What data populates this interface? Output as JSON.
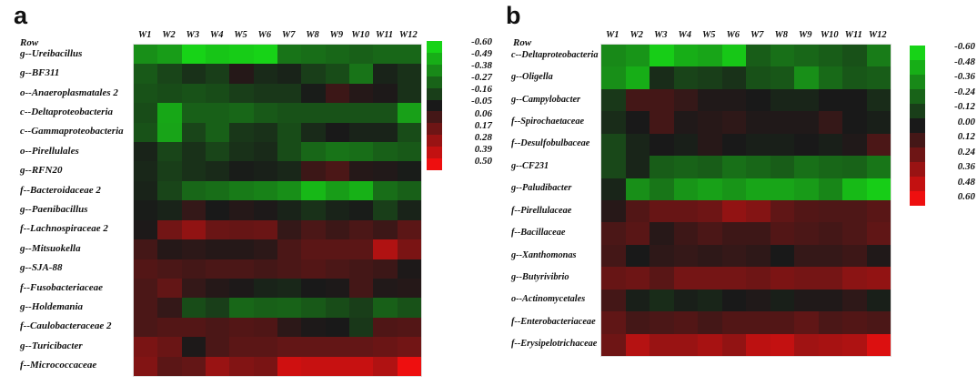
{
  "chart_data": [
    {
      "type": "heatmap",
      "panel_label": "a",
      "row_header_label": "Row",
      "x": [
        "W1",
        "W2",
        "W3",
        "W4",
        "W5",
        "W6",
        "W7",
        "W8",
        "W9",
        "W10",
        "W11",
        "W12"
      ],
      "y": [
        "g--Ureibacillus",
        "g--BF311",
        "o--Anaeroplasmatales 2",
        "c--Deltaproteobacteria",
        "c--Gammaproteobacteria",
        "o--Pirellulales",
        "g--RFN20",
        "f--Bacteroidaceae 2",
        "g--Paenibacillus",
        "f--Lachnospiraceae 2",
        "g--Mitsuokella",
        "g--SJA-88",
        "f--Fusobacteriaceae",
        "g--Holdemania",
        "f--Caulobacteraceae 2",
        "g--Turicibacter",
        "f--Micrococcaceae"
      ],
      "values": [
        [
          -0.4,
          -0.44,
          -0.6,
          -0.56,
          -0.58,
          -0.6,
          -0.32,
          -0.3,
          -0.28,
          -0.26,
          -0.28,
          -0.28
        ],
        [
          -0.24,
          -0.18,
          -0.12,
          -0.16,
          -0.02,
          -0.1,
          -0.08,
          -0.16,
          -0.2,
          -0.32,
          -0.08,
          -0.12
        ],
        [
          -0.22,
          -0.2,
          -0.22,
          -0.2,
          -0.16,
          -0.14,
          -0.14,
          -0.06,
          0.04,
          -0.02,
          -0.04,
          -0.12
        ],
        [
          -0.2,
          -0.47,
          -0.26,
          -0.26,
          -0.28,
          -0.24,
          -0.22,
          -0.22,
          -0.22,
          -0.22,
          -0.22,
          -0.45
        ],
        [
          -0.22,
          -0.46,
          -0.18,
          -0.26,
          -0.14,
          -0.12,
          -0.2,
          -0.1,
          -0.05,
          -0.08,
          -0.08,
          -0.2
        ],
        [
          -0.08,
          -0.18,
          -0.12,
          -0.18,
          -0.12,
          -0.1,
          -0.2,
          -0.28,
          -0.32,
          -0.3,
          -0.26,
          -0.24
        ],
        [
          -0.09,
          -0.16,
          -0.12,
          -0.1,
          -0.06,
          -0.07,
          -0.09,
          0.04,
          0.08,
          -0.02,
          -0.03,
          -0.06
        ],
        [
          -0.08,
          -0.18,
          -0.28,
          -0.3,
          -0.34,
          -0.36,
          -0.4,
          -0.52,
          -0.44,
          -0.5,
          -0.3,
          -0.26
        ],
        [
          -0.06,
          -0.08,
          0.02,
          -0.05,
          -0.02,
          -0.04,
          -0.08,
          -0.12,
          -0.08,
          -0.06,
          -0.16,
          -0.08
        ],
        [
          -0.04,
          0.18,
          0.26,
          0.16,
          0.15,
          0.16,
          0.02,
          0.08,
          0.04,
          0.08,
          0.04,
          0.12
        ],
        [
          0.06,
          -0.02,
          0.0,
          -0.02,
          -0.02,
          0.0,
          0.08,
          0.12,
          0.12,
          0.12,
          0.34,
          0.2
        ],
        [
          0.1,
          0.08,
          0.06,
          0.08,
          0.08,
          0.06,
          0.08,
          0.1,
          0.08,
          0.06,
          0.04,
          -0.04
        ],
        [
          0.08,
          0.14,
          0.02,
          -0.02,
          -0.04,
          -0.08,
          -0.09,
          -0.05,
          -0.04,
          0.06,
          -0.03,
          -0.02
        ],
        [
          0.08,
          0.02,
          -0.2,
          -0.16,
          -0.28,
          -0.26,
          -0.27,
          -0.24,
          -0.2,
          -0.16,
          -0.26,
          -0.22
        ],
        [
          0.08,
          0.1,
          0.1,
          0.08,
          0.1,
          0.09,
          0.0,
          -0.04,
          -0.05,
          -0.14,
          0.09,
          0.1
        ],
        [
          0.2,
          0.16,
          -0.04,
          0.08,
          0.12,
          0.12,
          0.14,
          0.14,
          0.14,
          0.14,
          0.16,
          0.18
        ],
        [
          0.22,
          0.12,
          0.14,
          0.28,
          0.22,
          0.2,
          0.42,
          0.4,
          0.4,
          0.4,
          0.34,
          0.5
        ]
      ],
      "legend_ticks": [
        "-0.60",
        "-0.49",
        "-0.38",
        "-0.27",
        "-0.16",
        "-0.05",
        "0.06",
        "0.17",
        "0.28",
        "0.39",
        "0.50"
      ],
      "color_scale": {
        "low_color": "#17D317",
        "mid_color": "#191919",
        "high_color": "#EE0F0F",
        "min": -0.6,
        "mid": -0.05,
        "max": 0.5,
        "legend_position": "right"
      }
    },
    {
      "type": "heatmap",
      "panel_label": "b",
      "row_header_label": "Row",
      "x": [
        "W1",
        "W2",
        "W3",
        "W4",
        "W5",
        "W6",
        "W7",
        "W8",
        "W9",
        "W10",
        "W11",
        "W12"
      ],
      "y": [
        "c--Deltaproteobacteria",
        "g--Oligella",
        "g--Campylobacter",
        "f--Spirochaetaceae",
        "f--Desulfobulbaceae",
        "g--CF231",
        "g--Paludibacter",
        "f--Pirellulaceae",
        "f--Bacillaceae",
        "g--Xanthomonas",
        "g--Butyrivibrio",
        "o--Actinomycetales",
        "f--Enterobacteriaceae",
        "f--Erysipelotrichaceae"
      ],
      "values": [
        [
          -0.36,
          -0.4,
          -0.58,
          -0.48,
          -0.45,
          -0.56,
          -0.22,
          -0.28,
          -0.25,
          -0.22,
          -0.18,
          -0.32
        ],
        [
          -0.38,
          -0.48,
          -0.06,
          -0.14,
          -0.12,
          -0.08,
          -0.18,
          -0.2,
          -0.38,
          -0.26,
          -0.2,
          -0.22
        ],
        [
          -0.1,
          0.12,
          0.12,
          0.08,
          0.02,
          0.02,
          0.0,
          -0.04,
          -0.04,
          0.0,
          0.0,
          -0.06
        ],
        [
          -0.06,
          0.0,
          0.12,
          0.02,
          0.04,
          0.06,
          0.02,
          0.02,
          0.02,
          0.08,
          0.0,
          -0.02
        ],
        [
          -0.15,
          -0.04,
          0.0,
          -0.02,
          0.04,
          0.0,
          -0.02,
          -0.02,
          0.0,
          -0.02,
          0.02,
          0.14
        ],
        [
          -0.15,
          -0.04,
          -0.22,
          -0.24,
          -0.22,
          -0.28,
          -0.25,
          -0.22,
          -0.28,
          -0.25,
          -0.24,
          -0.3
        ],
        [
          -0.04,
          -0.38,
          -0.3,
          -0.4,
          -0.44,
          -0.4,
          -0.45,
          -0.45,
          -0.42,
          -0.35,
          -0.52,
          -0.58
        ],
        [
          0.04,
          0.16,
          0.22,
          0.22,
          0.24,
          0.34,
          0.3,
          0.2,
          0.16,
          0.15,
          0.15,
          0.18
        ],
        [
          0.14,
          0.18,
          0.04,
          0.1,
          0.14,
          0.1,
          0.1,
          0.16,
          0.14,
          0.12,
          0.15,
          0.2
        ],
        [
          0.12,
          0.0,
          0.06,
          0.08,
          0.06,
          0.08,
          0.06,
          0.0,
          0.08,
          0.08,
          0.1,
          0.02
        ],
        [
          0.22,
          0.24,
          0.18,
          0.26,
          0.26,
          0.26,
          0.24,
          0.28,
          0.26,
          0.26,
          0.32,
          0.34
        ],
        [
          0.12,
          -0.02,
          -0.06,
          -0.02,
          -0.04,
          0.0,
          0.02,
          -0.02,
          0.02,
          0.02,
          0.06,
          -0.02
        ],
        [
          0.2,
          0.12,
          0.14,
          0.16,
          0.12,
          0.16,
          0.16,
          0.16,
          0.2,
          0.14,
          0.16,
          0.14
        ],
        [
          0.24,
          0.44,
          0.36,
          0.36,
          0.4,
          0.34,
          0.46,
          0.48,
          0.38,
          0.4,
          0.42,
          0.55
        ]
      ],
      "legend_ticks": [
        "-0.60",
        "-0.48",
        "-0.36",
        "-0.24",
        "-0.12",
        "0.00",
        "0.12",
        "0.24",
        "0.36",
        "0.48",
        "0.60"
      ],
      "color_scale": {
        "low_color": "#17D317",
        "mid_color": "#191919",
        "high_color": "#EE0F0F",
        "min": -0.6,
        "mid": 0.0,
        "max": 0.6,
        "legend_position": "right"
      }
    }
  ]
}
